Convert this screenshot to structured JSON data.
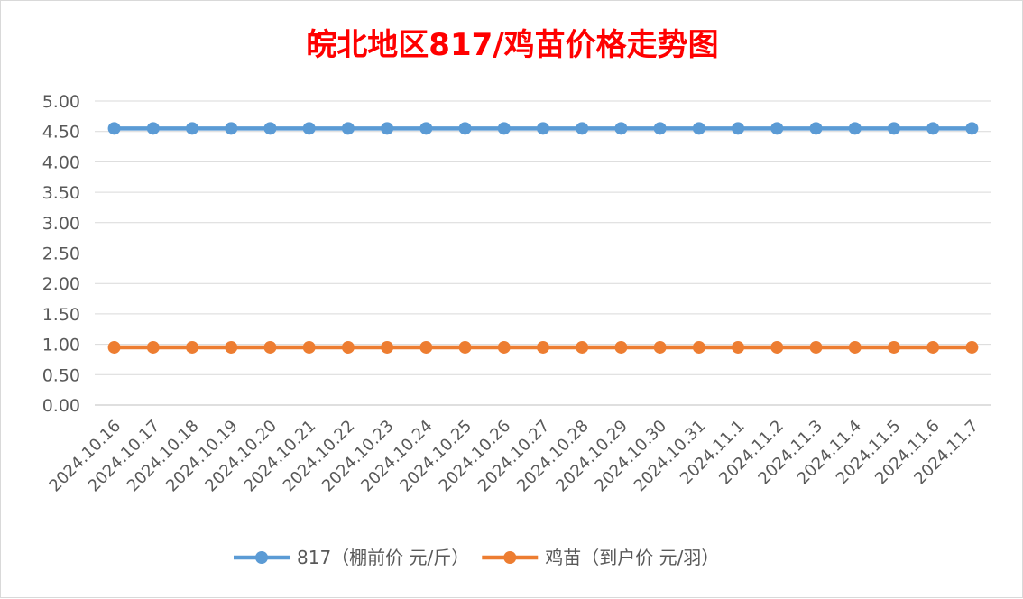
{
  "chart_data": {
    "type": "line",
    "title": "皖北地区817/鸡苗价格走势图",
    "title_color": "#ff0000",
    "xlabel": "",
    "ylabel": "",
    "ylim": [
      0,
      5
    ],
    "y_ticks": [
      "0.00",
      "0.50",
      "1.00",
      "1.50",
      "2.00",
      "2.50",
      "3.00",
      "3.50",
      "4.00",
      "4.50",
      "5.00"
    ],
    "grid": "horizontal",
    "legend_position": "bottom",
    "categories": [
      "2024.10.16",
      "2024.10.17",
      "2024.10.18",
      "2024.10.19",
      "2024.10.20",
      "2024.10.21",
      "2024.10.22",
      "2024.10.23",
      "2024.10.24",
      "2024.10.25",
      "2024.10.26",
      "2024.10.27",
      "2024.10.28",
      "2024.10.29",
      "2024.10.30",
      "2024.10.31",
      "2024.11.1",
      "2024.11.2",
      "2024.11.3",
      "2024.11.4",
      "2024.11.5",
      "2024.11.6",
      "2024.11.7"
    ],
    "series": [
      {
        "name": "817（棚前价 元/斤）",
        "color": "#5b9bd5",
        "values": [
          4.55,
          4.55,
          4.55,
          4.55,
          4.55,
          4.55,
          4.55,
          4.55,
          4.55,
          4.55,
          4.55,
          4.55,
          4.55,
          4.55,
          4.55,
          4.55,
          4.55,
          4.55,
          4.55,
          4.55,
          4.55,
          4.55,
          4.55
        ]
      },
      {
        "name": "鸡苗（到户价 元/羽）",
        "color": "#ed7d31",
        "values": [
          0.95,
          0.95,
          0.95,
          0.95,
          0.95,
          0.95,
          0.95,
          0.95,
          0.95,
          0.95,
          0.95,
          0.95,
          0.95,
          0.95,
          0.95,
          0.95,
          0.95,
          0.95,
          0.95,
          0.95,
          0.95,
          0.95,
          0.95
        ]
      }
    ]
  }
}
